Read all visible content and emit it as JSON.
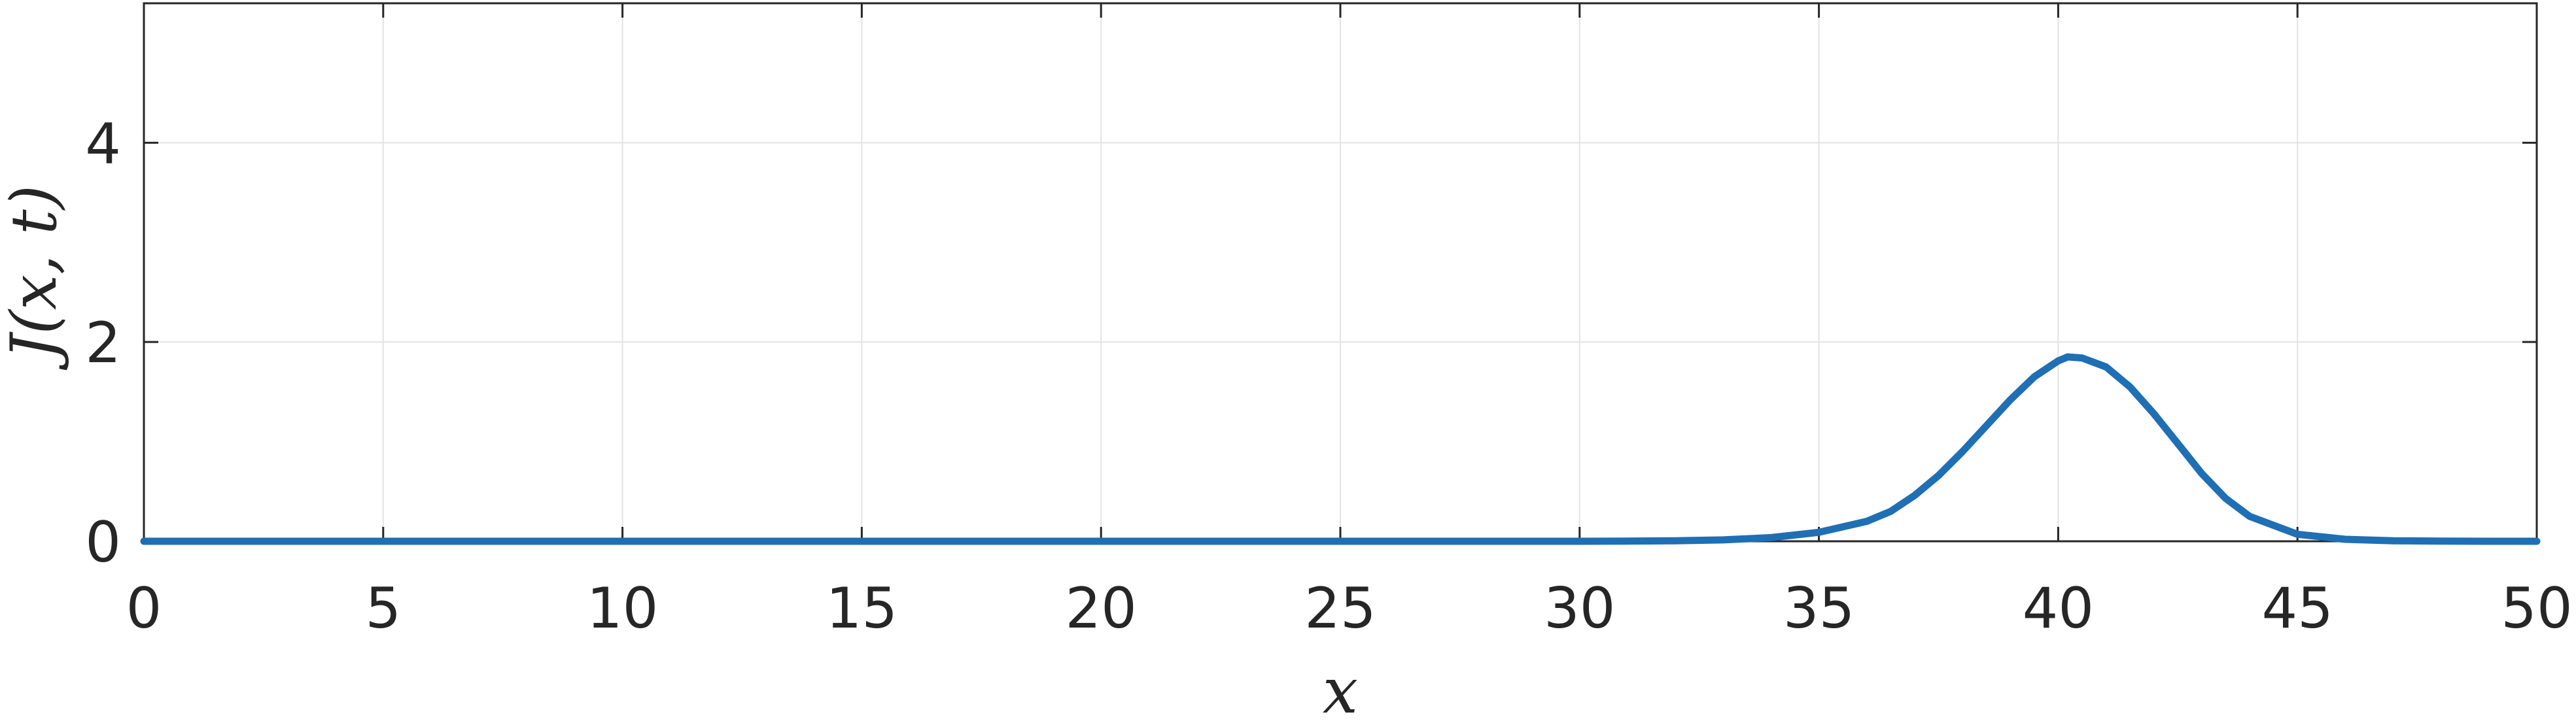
{
  "chart_data": {
    "type": "line",
    "title": "",
    "xlabel": "x",
    "ylabel": "J(x, t)",
    "xlim": [
      0,
      50
    ],
    "ylim": [
      0,
      5.4
    ],
    "xticks": [
      0,
      5,
      10,
      15,
      20,
      25,
      30,
      35,
      40,
      45,
      50
    ],
    "yticks": [
      0,
      2,
      4
    ],
    "xtick_labels": [
      "0",
      "5",
      "10",
      "15",
      "20",
      "25",
      "30",
      "35",
      "40",
      "45",
      "50"
    ],
    "ytick_labels": [
      "0",
      "2",
      "4"
    ],
    "grid": true,
    "series": [
      {
        "color": "#1f6fb4",
        "x": [
          0,
          5,
          10,
          15,
          20,
          25,
          30,
          31,
          32,
          33,
          34,
          35,
          36,
          36.5,
          37,
          37.5,
          38,
          38.5,
          39,
          39.5,
          40,
          40.2,
          40.5,
          41,
          41.5,
          42,
          42.5,
          43,
          43.5,
          44,
          45,
          46,
          47,
          48,
          49,
          50
        ],
        "y": [
          0,
          0,
          0,
          0,
          0,
          0,
          0,
          0.002,
          0.005,
          0.014,
          0.037,
          0.09,
          0.2,
          0.3,
          0.46,
          0.66,
          0.9,
          1.16,
          1.42,
          1.65,
          1.81,
          1.85,
          1.84,
          1.75,
          1.55,
          1.28,
          0.98,
          0.68,
          0.43,
          0.25,
          0.07,
          0.02,
          0.005,
          0.002,
          0.0,
          0
        ]
      }
    ]
  }
}
